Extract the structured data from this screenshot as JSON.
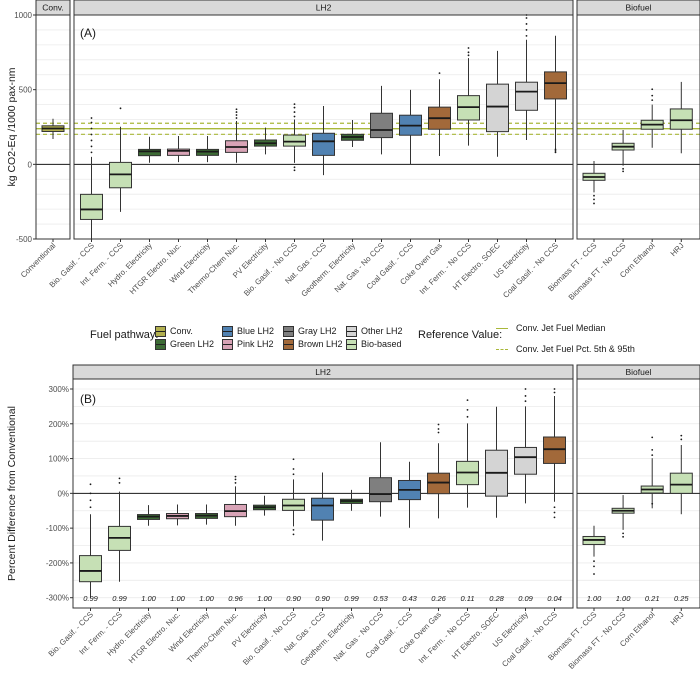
{
  "colors": {
    "conv": "#b2b04f",
    "green": "#3d6b35",
    "pink": "#d8a3b6",
    "blue": "#5182b2",
    "gray": "#7f7f7f",
    "brown": "#a2693a",
    "other": "#d4d4d4",
    "bio": "#c6e0b5",
    "reference": "#a9b83a"
  },
  "legend": {
    "fuel_title": "Fuel pathway:",
    "fuel_items": [
      {
        "label": "Conv.",
        "key": "conv"
      },
      {
        "label": "Green LH2",
        "key": "green"
      },
      {
        "label": "Blue LH2",
        "key": "blue"
      },
      {
        "label": "Pink LH2",
        "key": "pink"
      },
      {
        "label": "Gray LH2",
        "key": "gray"
      },
      {
        "label": "Brown LH2",
        "key": "brown"
      },
      {
        "label": "Other LH2",
        "key": "other"
      },
      {
        "label": "Bio-based",
        "key": "bio"
      }
    ],
    "ref_title": "Reference Value:",
    "ref_items": [
      {
        "label": "Conv. Jet Fuel Median",
        "style": "solid"
      },
      {
        "label": "Conv. Jet Fuel Pct. 5th & 95th",
        "style": "dashed"
      }
    ]
  },
  "chart_data": [
    {
      "type": "box",
      "panel_label": "(A)",
      "ylabel": "kg CO2-Eq /1000 pax-nm",
      "ylim": [
        -500,
        1000
      ],
      "yticks": [
        -500,
        0,
        500,
        1000
      ],
      "ytick_labels": [
        "-500",
        "0",
        "500",
        "1000"
      ],
      "grid": true,
      "reference": {
        "median": 239,
        "p5": 201,
        "p95": 275
      },
      "facets": [
        {
          "label": "Conv.",
          "categories": [
            {
              "name": "Conventional",
              "pathway": "conv",
              "lo": 170,
              "q1": 220,
              "med": 240,
              "q3": 258,
              "hi": 305,
              "outliers": []
            }
          ]
        },
        {
          "label": "LH2",
          "categories": [
            {
              "name": "Bio. Gasif. - CCS",
              "pathway": "bio",
              "lo": -500,
              "q1": -369,
              "med": -302,
              "q3": -201,
              "hi": 50,
              "outliers": [
                80,
                120,
                160,
                200,
                240,
                280,
                310
              ]
            },
            {
              "name": "Int. Ferm. - CCS",
              "pathway": "bio",
              "lo": -318,
              "q1": -157,
              "med": -67,
              "q3": 13,
              "hi": 252,
              "outliers": [
                375
              ]
            },
            {
              "name": "Hydro. Electricity",
              "pathway": "green",
              "lo": 11,
              "q1": 58,
              "med": 87,
              "q3": 100,
              "hi": 185,
              "outliers": []
            },
            {
              "name": "HTGR Electro. Nuc.",
              "pathway": "pink",
              "lo": 15,
              "q1": 60,
              "med": 90,
              "q3": 102,
              "hi": 190,
              "outliers": []
            },
            {
              "name": "Wind Electricity",
              "pathway": "green",
              "lo": 15,
              "q1": 60,
              "med": 85,
              "q3": 100,
              "hi": 190,
              "outliers": []
            },
            {
              "name": "Thermo-Chem Nuc.",
              "pathway": "pink",
              "lo": 11,
              "q1": 80,
              "med": 116,
              "q3": 158,
              "hi": 290,
              "outliers": [
                310,
                330,
                350,
                369
              ]
            },
            {
              "name": "PV Electricity",
              "pathway": "green",
              "lo": 67,
              "q1": 122,
              "med": 141,
              "q3": 163,
              "hi": 246,
              "outliers": []
            },
            {
              "name": "Bio. Gasif. - No CCS",
              "pathway": "bio",
              "lo": 10,
              "q1": 122,
              "med": 152,
              "q3": 196,
              "hi": 300,
              "outliers": [
                -40,
                -20,
                320,
                350,
                380,
                403
              ]
            },
            {
              "name": "Nat. Gas - CCS",
              "pathway": "blue",
              "lo": -72,
              "q1": 60,
              "med": 154,
              "q3": 208,
              "hi": 391,
              "outliers": []
            },
            {
              "name": "Geotherm. Electricity",
              "pathway": "green",
              "lo": 116,
              "q1": 161,
              "med": 183,
              "q3": 201,
              "hi": 297,
              "outliers": []
            },
            {
              "name": "Nat. Gas - No CCS",
              "pathway": "gray",
              "lo": 67,
              "q1": 179,
              "med": 230,
              "q3": 342,
              "hi": 525,
              "outliers": []
            },
            {
              "name": "Coal Gasif. - CCS",
              "pathway": "blue",
              "lo": 0,
              "q1": 195,
              "med": 259,
              "q3": 329,
              "hi": 499,
              "outliers": []
            },
            {
              "name": "Coke Oven Gas",
              "pathway": "brown",
              "lo": 56,
              "q1": 235,
              "med": 309,
              "q3": 383,
              "hi": 570,
              "outliers": [
                611
              ]
            },
            {
              "name": "Int. Ferm. - No CCS",
              "pathway": "bio",
              "lo": 125,
              "q1": 297,
              "med": 383,
              "q3": 460,
              "hi": 711,
              "outliers": [
                730,
                750,
                779
              ]
            },
            {
              "name": "HT Electro. SOEC",
              "pathway": "other",
              "lo": 51,
              "q1": 219,
              "med": 387,
              "q3": 537,
              "hi": 760,
              "outliers": []
            },
            {
              "name": "US Electricity",
              "pathway": "other",
              "lo": 163,
              "q1": 362,
              "med": 487,
              "q3": 550,
              "hi": 834,
              "outliers": [
                860,
                900,
                940,
                980,
                1000
              ]
            },
            {
              "name": "Coal Gasif. - No CCS",
              "pathway": "brown",
              "lo": 100,
              "q1": 438,
              "med": 544,
              "q3": 619,
              "hi": 861,
              "outliers": [
                80,
                90,
                100
              ]
            }
          ]
        },
        {
          "label": "Biofuel",
          "categories": [
            {
              "name": "Biomass FT - CCS",
              "pathway": "bio",
              "lo": -188,
              "q1": -107,
              "med": -85,
              "q3": -60,
              "hi": 22,
              "outliers": [
                -210,
                -235,
                -262
              ]
            },
            {
              "name": "Biomass FT - No CCS",
              "pathway": "bio",
              "lo": -9,
              "q1": 96,
              "med": 118,
              "q3": 141,
              "hi": 230,
              "outliers": [
                -30,
                -47
              ]
            },
            {
              "name": "Corn Ethanol",
              "pathway": "bio",
              "lo": 111,
              "q1": 235,
              "med": 266,
              "q3": 295,
              "hi": 400,
              "outliers": [
                430,
                460,
                503
              ]
            },
            {
              "name": "HRJ",
              "pathway": "bio",
              "lo": 74,
              "q1": 235,
              "med": 295,
              "q3": 371,
              "hi": 552,
              "outliers": []
            }
          ]
        }
      ]
    },
    {
      "type": "box",
      "panel_label": "(B)",
      "ylabel": "Percent Difference from Conventional",
      "ylim": [
        -300,
        300
      ],
      "yticks": [
        -300,
        -200,
        -100,
        0,
        100,
        200,
        300
      ],
      "ytick_labels": [
        "-300%",
        "-200%",
        "-100%",
        "0%",
        "100%",
        "200%",
        "300%"
      ],
      "grid": true,
      "facets": [
        {
          "label": "LH2",
          "categories": [
            {
              "name": "Bio. Gasif. - CCS",
              "pathway": "bio",
              "prob": "0.99",
              "lo": -300,
              "q1": -254,
              "med": -223,
              "q3": -179,
              "hi": -60,
              "outliers": [
                -40,
                -20,
                0,
                26
              ]
            },
            {
              "name": "Int. Ferm. - CCS",
              "pathway": "bio",
              "prob": "0.99",
              "lo": -254,
              "q1": -164,
              "med": -128,
              "q3": -95,
              "hi": 5,
              "outliers": [
                30,
                43
              ]
            },
            {
              "name": "Hydro. Electricity",
              "pathway": "green",
              "prob": "1.00",
              "lo": -93,
              "q1": -75,
              "med": -67,
              "q3": -61,
              "hi": -34,
              "outliers": []
            },
            {
              "name": "HTGR Electro. Nuc.",
              "pathway": "pink",
              "prob": "1.00",
              "lo": -92,
              "q1": -73,
              "med": -65,
              "q3": -58,
              "hi": -32,
              "outliers": []
            },
            {
              "name": "Wind Electricity",
              "pathway": "green",
              "prob": "1.00",
              "lo": -90,
              "q1": -72,
              "med": -64,
              "q3": -58,
              "hi": -32,
              "outliers": []
            },
            {
              "name": "Thermo-Chem Nuc.",
              "pathway": "pink",
              "prob": "0.96",
              "lo": -93,
              "q1": -67,
              "med": -51,
              "q3": -32,
              "hi": 20,
              "outliers": [
                30,
                40,
                48
              ]
            },
            {
              "name": "PV Electricity",
              "pathway": "green",
              "prob": "1.00",
              "lo": -64,
              "q1": -47,
              "med": -40,
              "q3": -34,
              "hi": -7,
              "outliers": []
            },
            {
              "name": "Bio. Gasif. - No CCS",
              "pathway": "bio",
              "prob": "0.90",
              "lo": -95,
              "q1": -49,
              "med": -35,
              "q3": -17,
              "hi": 40,
              "outliers": [
                -105,
                -118,
                55,
                70,
                98
              ]
            },
            {
              "name": "Nat. Gas - CCS",
              "pathway": "blue",
              "prob": "0.90",
              "lo": -136,
              "q1": -77,
              "med": -35,
              "q3": -14,
              "hi": 60,
              "outliers": []
            },
            {
              "name": "Geotherm. Electricity",
              "pathway": "green",
              "prob": "0.99",
              "lo": -50,
              "q1": -29,
              "med": -22,
              "q3": -17,
              "hi": 10,
              "outliers": []
            },
            {
              "name": "Nat. Gas - No CCS",
              "pathway": "gray",
              "prob": "0.53",
              "lo": -67,
              "q1": -24,
              "med": -2,
              "q3": 45,
              "hi": 147,
              "outliers": []
            },
            {
              "name": "Coal Gasif. - CCS",
              "pathway": "blue",
              "prob": "0.43",
              "lo": -99,
              "q1": -18,
              "med": 10,
              "q3": 37,
              "hi": 91,
              "outliers": []
            },
            {
              "name": "Coke Oven Gas",
              "pathway": "brown",
              "prob": "0.26",
              "lo": -72,
              "q1": -1,
              "med": 31,
              "q3": 58,
              "hi": 144,
              "outliers": [
                175,
                185,
                198
              ]
            },
            {
              "name": "Int. Ferm. - No CCS",
              "pathway": "bio",
              "prob": "0.11",
              "lo": -41,
              "q1": 25,
              "med": 60,
              "q3": 92,
              "hi": 201,
              "outliers": [
                220,
                240,
                268
              ]
            },
            {
              "name": "HT Electro. SOEC",
              "pathway": "other",
              "prob": "0.28",
              "lo": -70,
              "q1": -8,
              "med": 59,
              "q3": 124,
              "hi": 249,
              "outliers": []
            },
            {
              "name": "US Electricity",
              "pathway": "other",
              "prob": "0.09",
              "lo": -29,
              "q1": 55,
              "med": 104,
              "q3": 132,
              "hi": 250,
              "outliers": [
                265,
                280,
                300
              ]
            },
            {
              "name": "Coal Gasif. - No CCS",
              "pathway": "brown",
              "prob": "0.04",
              "lo": -24,
              "q1": 86,
              "med": 127,
              "q3": 162,
              "hi": 280,
              "outliers": [
                -40,
                -55,
                -69,
                290,
                300
              ]
            }
          ]
        },
        {
          "label": "Biofuel",
          "categories": [
            {
              "name": "Biomass FT - CCS",
              "pathway": "bio",
              "prob": "1.00",
              "lo": -182,
              "q1": -147,
              "med": -134,
              "q3": -124,
              "hi": -93,
              "outliers": [
                -195,
                -210,
                -232
              ]
            },
            {
              "name": "Biomass FT - No CCS",
              "pathway": "bio",
              "prob": "1.00",
              "lo": -105,
              "q1": -57,
              "med": -50,
              "q3": -43,
              "hi": -5,
              "outliers": [
                -115,
                -125
              ]
            },
            {
              "name": "Corn Ethanol",
              "pathway": "bio",
              "prob": "0.21",
              "lo": -43,
              "q1": 1,
              "med": 11,
              "q3": 21,
              "hi": 101,
              "outliers": [
                -30,
                110,
                125,
                161
              ]
            },
            {
              "name": "HRJ",
              "pathway": "bio",
              "prob": "0.25",
              "lo": -60,
              "q1": 0,
              "med": 25,
              "q3": 58,
              "hi": 139,
              "outliers": [
                155,
                166
              ]
            }
          ]
        }
      ]
    }
  ]
}
